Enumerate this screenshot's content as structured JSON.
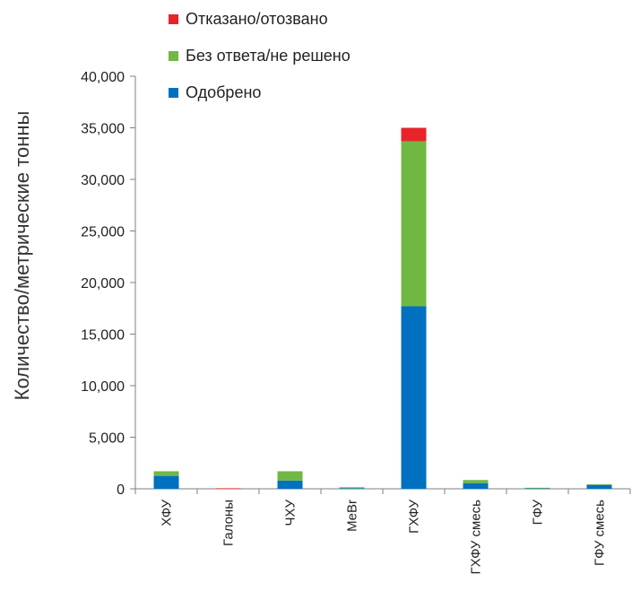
{
  "chart_data": {
    "type": "bar",
    "stacked": true,
    "ylabel": "Количество/метрические тонны",
    "xlabel": "",
    "ylim": [
      0,
      40000
    ],
    "yticks": [
      0,
      5000,
      10000,
      15000,
      20000,
      25000,
      30000,
      35000,
      40000
    ],
    "ytick_labels": [
      "0",
      "5,000",
      "10,000",
      "15,000",
      "20,000",
      "25,000",
      "30,000",
      "35,000",
      "40,000"
    ],
    "categories": [
      "ХФУ",
      "Галоны",
      "ЧХУ",
      "MeBr",
      "ГХФУ",
      "ГХФУ смесь",
      "ГФУ",
      "ГФУ смесь"
    ],
    "series": [
      {
        "name": "Одобрено",
        "color": "#0070c0",
        "values": [
          1250,
          0,
          800,
          50,
          17700,
          550,
          50,
          400
        ]
      },
      {
        "name": "Без ответа/не решено",
        "color": "#70b843",
        "values": [
          450,
          0,
          900,
          100,
          16000,
          300,
          50,
          30
        ]
      },
      {
        "name": "Отказано/отозвано",
        "color": "#e8242b",
        "values": [
          0,
          50,
          0,
          0,
          1300,
          0,
          0,
          0
        ]
      }
    ],
    "legend": {
      "position": "top",
      "order": [
        "Отказано/отозвано",
        "Без ответа/не решено",
        "Одобрено"
      ]
    },
    "grid": false
  }
}
